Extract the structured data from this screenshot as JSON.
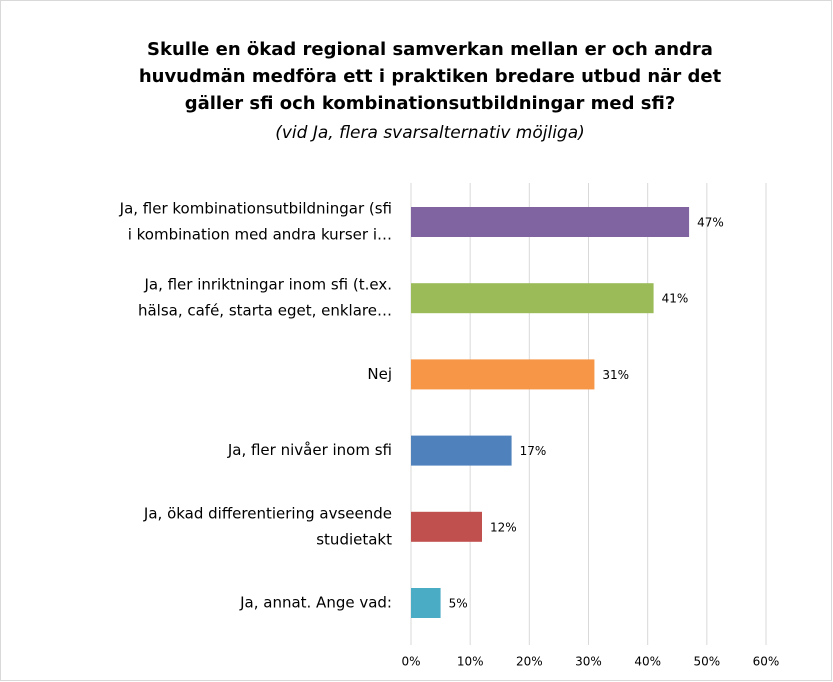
{
  "chart_data": {
    "type": "bar",
    "orientation": "horizontal",
    "title": [
      "Skulle en ökad regional samverkan mellan er och andra",
      "huvudmän medföra ett i praktiken bredare utbud när det",
      "gäller sfi och kombinationsutbildningar med sfi?"
    ],
    "subtitle": "(vid Ja, flera svarsalternativ möjliga)",
    "categories": [
      [
        "Ja, fler kombinationsutbildningar (sfi",
        "i kombination med andra kurser i…"
      ],
      [
        "Ja, fler inriktningar inom sfi (t.ex.",
        "hälsa, café, starta eget, enklare…"
      ],
      [
        "Nej"
      ],
      [
        "Ja, fler nivåer inom sfi"
      ],
      [
        "Ja, ökad differentiering avseende",
        "studietakt"
      ],
      [
        "Ja, annat. Ange vad:"
      ]
    ],
    "values": [
      47,
      41,
      31,
      17,
      12,
      5
    ],
    "value_labels": [
      "47%",
      "41%",
      "31%",
      "17%",
      "12%",
      "5%"
    ],
    "colors": [
      "#8064a2",
      "#9bbb59",
      "#f79646",
      "#4f81bd",
      "#c0504d",
      "#4bacc6"
    ],
    "xlim": [
      0,
      60
    ],
    "xticks": [
      {
        "value": 0,
        "label": "0%"
      },
      {
        "value": 10,
        "label": "10%"
      },
      {
        "value": 20,
        "label": "20%"
      },
      {
        "value": 30,
        "label": "30%"
      },
      {
        "value": 40,
        "label": "40%"
      },
      {
        "value": 50,
        "label": "50%"
      },
      {
        "value": 60,
        "label": "60%"
      }
    ],
    "grid": true
  }
}
